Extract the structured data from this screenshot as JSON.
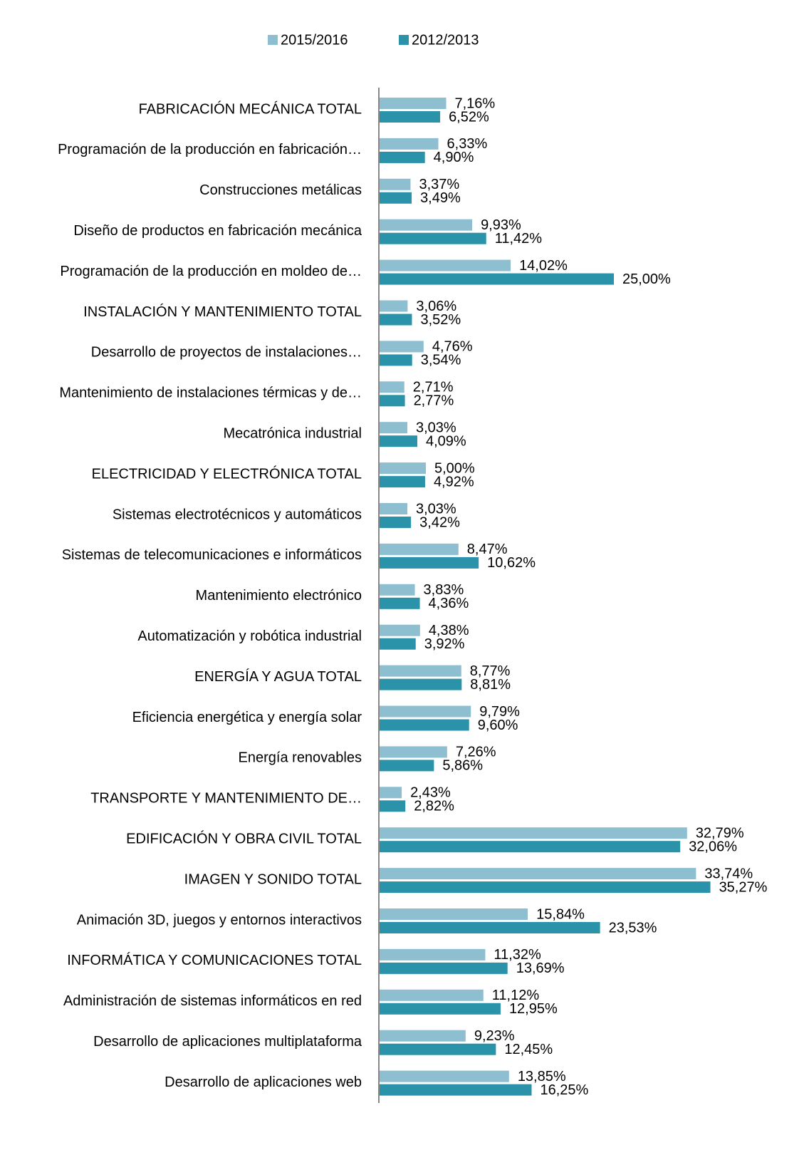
{
  "chart_data": {
    "type": "hbar",
    "categories": [
      "FABRICACIÓN MECÁNICA TOTAL",
      "Programación de la producción en fabricación…",
      "Construcciones metálicas",
      "Diseño de productos en fabricación mecánica",
      "Programación de la producción en moldeo de…",
      "INSTALACIÓN Y MANTENIMIENTO TOTAL",
      "Desarrollo de proyectos de instalaciones…",
      "Mantenimiento de instalaciones térmicas y de…",
      "Mecatrónica industrial",
      "ELECTRICIDAD Y ELECTRÓNICA  TOTAL",
      "Sistemas electrotécnicos y automáticos",
      "Sistemas de telecomunicaciones e informáticos",
      "Mantenimiento electrónico",
      "Automatización y robótica industrial",
      "ENERGÍA Y AGUA TOTAL",
      "Eficiencia energética y energía solar",
      "Energía renovables",
      "TRANSPORTE Y MANTENIMIENTO DE…",
      "EDIFICACIÓN Y OBRA CIVIL  TOTAL",
      "IMAGEN Y SONIDO  TOTAL",
      "Animación 3D, juegos y entornos interactivos",
      "INFORMÁTICA Y COMUNICACIONES  TOTAL",
      "Administración de sistemas informáticos en red",
      "Desarrollo de aplicaciones multiplataforma",
      "Desarrollo de aplicaciones web"
    ],
    "series": [
      {
        "name": "2015/2016",
        "color": "#8dbfd1",
        "values": [
          7.16,
          6.33,
          3.37,
          9.93,
          14.02,
          3.06,
          4.76,
          2.71,
          3.03,
          5.0,
          3.03,
          8.47,
          3.83,
          4.38,
          8.77,
          9.79,
          7.26,
          2.43,
          32.79,
          33.74,
          15.84,
          11.32,
          11.12,
          9.23,
          13.85
        ],
        "value_labels": [
          "7,16%",
          "6,33%",
          "3,37%",
          "9,93%",
          "14,02%",
          "3,06%",
          "4,76%",
          "2,71%",
          "3,03%",
          "5,00%",
          "3,03%",
          "8,47%",
          "3,83%",
          "4,38%",
          "8,77%",
          "9,79%",
          "7,26%",
          "2,43%",
          "32,79%",
          "33,74%",
          "15,84%",
          "11,32%",
          "11,12%",
          "9,23%",
          "13,85%"
        ]
      },
      {
        "name": "2012/2013",
        "color": "#2a93a9",
        "values": [
          6.52,
          4.9,
          3.49,
          11.42,
          25.0,
          3.52,
          3.54,
          2.77,
          4.09,
          4.92,
          3.42,
          10.62,
          4.36,
          3.92,
          8.81,
          9.6,
          5.86,
          2.82,
          32.06,
          35.27,
          23.53,
          13.69,
          12.95,
          12.45,
          16.25
        ],
        "value_labels": [
          "6,52%",
          "4,90%",
          "3,49%",
          "11,42%",
          "25,00%",
          "3,52%",
          "3,54%",
          "2,77%",
          "4,09%",
          "4,92%",
          "3,42%",
          "10,62%",
          "4,36%",
          "3,92%",
          "8,81%",
          "9,60%",
          "5,86%",
          "2,82%",
          "32,06%",
          "35,27%",
          "23,53%",
          "13,69%",
          "12,95%",
          "12,45%",
          "16,25%"
        ]
      }
    ]
  }
}
